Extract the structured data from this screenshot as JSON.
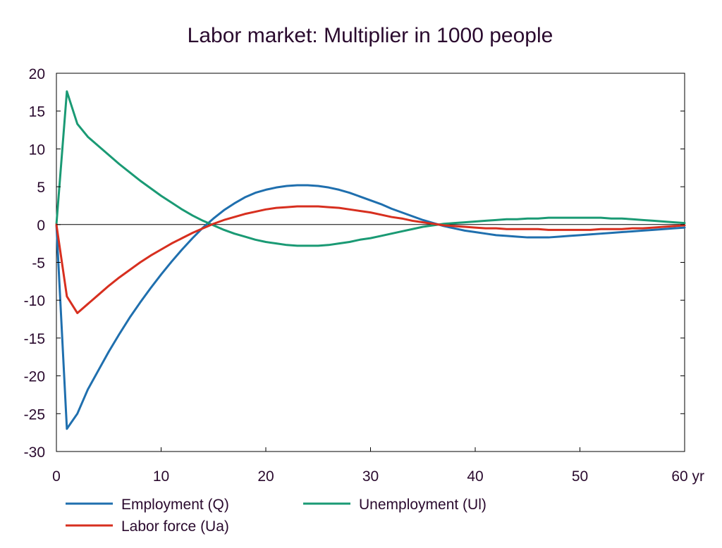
{
  "chart_data": {
    "type": "line",
    "title": "Labor market: Multiplier in 1000 people",
    "xlabel": "",
    "ylabel": "",
    "xlim": [
      0,
      60
    ],
    "ylim": [
      -30,
      20
    ],
    "x_ticks": [
      0,
      10,
      20,
      30,
      40,
      50,
      60
    ],
    "x_tick_labels": [
      "0",
      "10",
      "20",
      "30",
      "40",
      "50",
      "60 yr"
    ],
    "y_ticks": [
      20,
      15,
      10,
      5,
      0,
      -5,
      -10,
      -15,
      -20,
      -25,
      -30
    ],
    "y_tick_labels": [
      "20",
      "15",
      "10",
      "5",
      "0",
      "-5",
      "-10",
      "-15",
      "-20",
      "-25",
      "-30"
    ],
    "grid": false,
    "zero_line": true,
    "legend_position": "bottom",
    "x": [
      0,
      1,
      2,
      3,
      4,
      5,
      6,
      7,
      8,
      9,
      10,
      11,
      12,
      13,
      14,
      15,
      16,
      17,
      18,
      19,
      20,
      21,
      22,
      23,
      24,
      25,
      26,
      27,
      28,
      29,
      30,
      31,
      32,
      33,
      34,
      35,
      36,
      37,
      38,
      39,
      40,
      41,
      42,
      43,
      44,
      45,
      46,
      47,
      48,
      49,
      50,
      51,
      52,
      53,
      54,
      55,
      56,
      57,
      58,
      59,
      60
    ],
    "series": [
      {
        "name": "Employment (Q)",
        "color": "#1f6fae",
        "values": [
          0,
          -27.0,
          -25.0,
          -21.8,
          -19.3,
          -16.8,
          -14.5,
          -12.3,
          -10.3,
          -8.4,
          -6.6,
          -4.9,
          -3.3,
          -1.8,
          -0.4,
          0.8,
          1.9,
          2.8,
          3.6,
          4.2,
          4.6,
          4.9,
          5.1,
          5.2,
          5.2,
          5.1,
          4.9,
          4.6,
          4.2,
          3.7,
          3.2,
          2.7,
          2.1,
          1.6,
          1.1,
          0.6,
          0.2,
          -0.2,
          -0.5,
          -0.8,
          -1.0,
          -1.2,
          -1.4,
          -1.5,
          -1.6,
          -1.7,
          -1.7,
          -1.7,
          -1.6,
          -1.5,
          -1.4,
          -1.3,
          -1.2,
          -1.1,
          -1.0,
          -0.9,
          -0.8,
          -0.7,
          -0.6,
          -0.5,
          -0.4
        ]
      },
      {
        "name": "Unemployment (Ul)",
        "color": "#1a9a74",
        "values": [
          0,
          17.6,
          13.3,
          11.6,
          10.4,
          9.2,
          8.0,
          6.9,
          5.8,
          4.8,
          3.8,
          2.9,
          2.0,
          1.2,
          0.5,
          -0.1,
          -0.7,
          -1.2,
          -1.6,
          -2.0,
          -2.3,
          -2.5,
          -2.7,
          -2.8,
          -2.8,
          -2.8,
          -2.7,
          -2.5,
          -2.3,
          -2.0,
          -1.8,
          -1.5,
          -1.2,
          -0.9,
          -0.6,
          -0.3,
          -0.1,
          0.1,
          0.2,
          0.3,
          0.4,
          0.5,
          0.6,
          0.7,
          0.7,
          0.8,
          0.8,
          0.9,
          0.9,
          0.9,
          0.9,
          0.9,
          0.9,
          0.8,
          0.8,
          0.7,
          0.6,
          0.5,
          0.4,
          0.3,
          0.2
        ]
      },
      {
        "name": "Labor force (Ua)",
        "color": "#d72f1f",
        "values": [
          0,
          -9.5,
          -11.7,
          -10.5,
          -9.3,
          -8.1,
          -7.0,
          -6.0,
          -5.0,
          -4.1,
          -3.3,
          -2.5,
          -1.8,
          -1.1,
          -0.5,
          0.1,
          0.6,
          1.0,
          1.4,
          1.7,
          2.0,
          2.2,
          2.3,
          2.4,
          2.4,
          2.4,
          2.3,
          2.2,
          2.0,
          1.8,
          1.6,
          1.3,
          1.0,
          0.8,
          0.5,
          0.3,
          0.1,
          -0.1,
          -0.2,
          -0.3,
          -0.4,
          -0.5,
          -0.5,
          -0.6,
          -0.6,
          -0.6,
          -0.6,
          -0.7,
          -0.7,
          -0.7,
          -0.7,
          -0.7,
          -0.6,
          -0.6,
          -0.6,
          -0.5,
          -0.5,
          -0.4,
          -0.3,
          -0.2,
          -0.1
        ]
      }
    ]
  },
  "legend": {
    "employment": "Employment (Q)",
    "unemployment": "Unemployment (Ul)",
    "labor_force": "Labor force (Ua)"
  }
}
